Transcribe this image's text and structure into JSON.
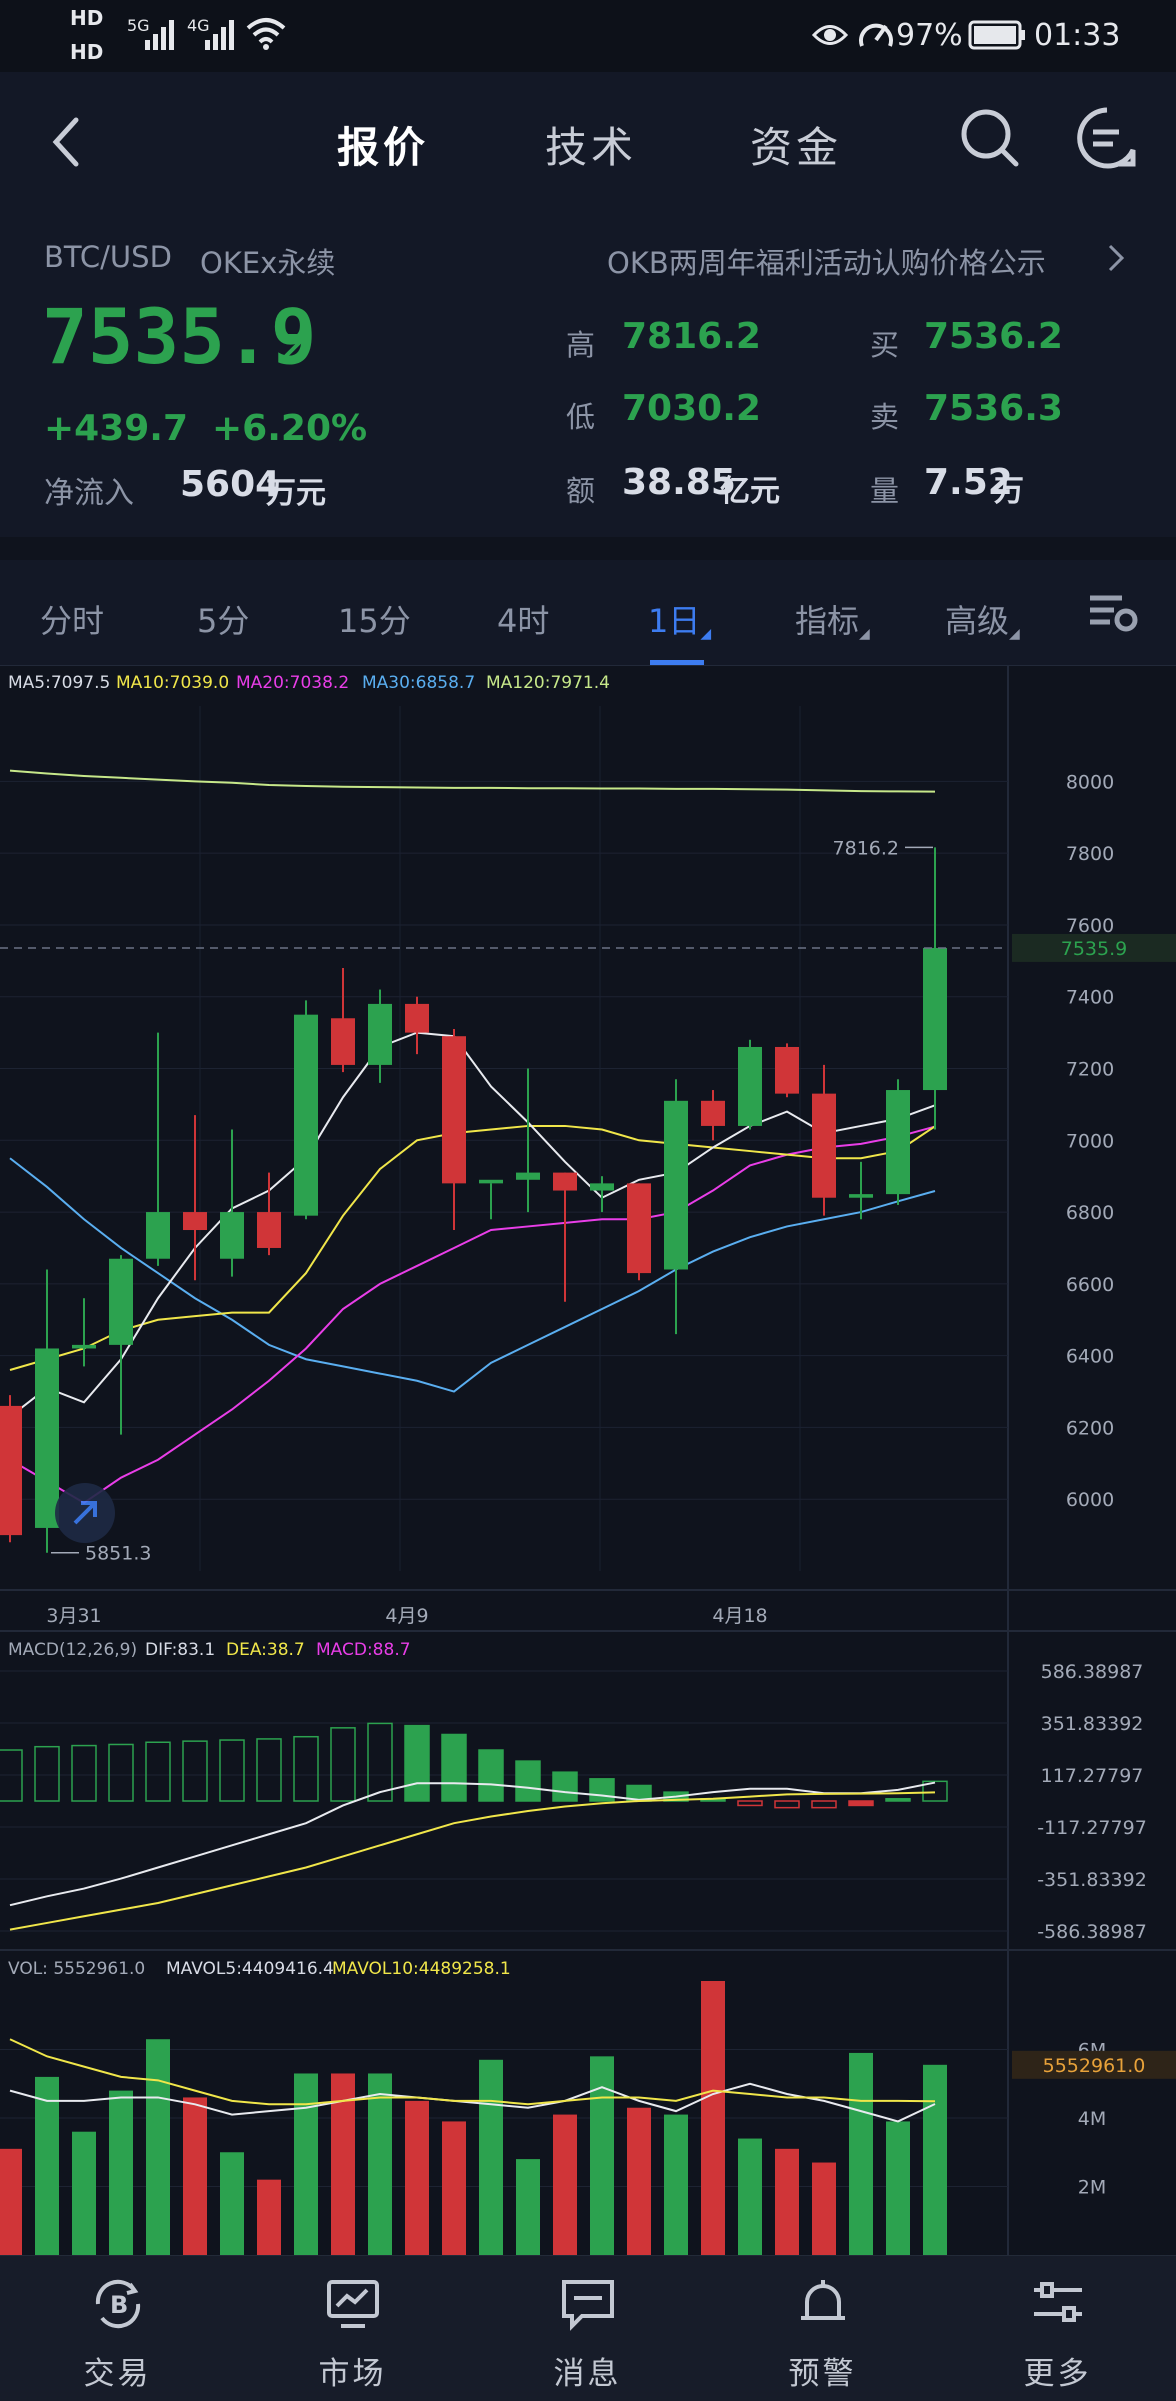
{
  "status": {
    "hd1": "HD",
    "hd2": "HD",
    "sig1": "5G",
    "sig2": "4G",
    "battery": "97%",
    "time": "01:33"
  },
  "nav": {
    "tabs": [
      "报价",
      "技术",
      "资金"
    ],
    "active": 0
  },
  "quote": {
    "pair": "BTC/USD",
    "market": "OKEx永续",
    "notice": "OKB两周年福利活动认购价格公示",
    "price": "7535.9",
    "change": "+439.7",
    "change_pct": "+6.20%",
    "netflow_label": "净流入",
    "netflow_value": "5604",
    "netflow_unit": "万元",
    "high_label": "高",
    "high": "7816.2",
    "low_label": "低",
    "low": "7030.2",
    "amount_label": "额",
    "amount": "38.85",
    "amount_unit": "亿元",
    "buy_label": "买",
    "buy": "7536.2",
    "sell_label": "卖",
    "sell": "7536.3",
    "volume_label": "量",
    "volume": "7.52",
    "volume_unit": "万"
  },
  "periods": {
    "items": [
      "分时",
      "5分",
      "15分",
      "4时",
      "1日",
      "指标",
      "高级"
    ],
    "active": 4
  },
  "colors": {
    "up": "#2ca24f",
    "down": "#d03538",
    "bg": "#0f131d",
    "accent": "#3d7cf0"
  },
  "chart_data": [
    {
      "type": "candlestick",
      "legend": {
        "ma5": "MA5:7097.5",
        "ma10": "MA10:7039.0",
        "ma20": "MA20:7038.2",
        "ma30": "MA30:6858.7",
        "ma120": "MA120:7971.4"
      },
      "y_ticks": [
        "8000",
        "7800",
        "7600",
        "7400",
        "7200",
        "7000",
        "6800",
        "6600",
        "6400",
        "6200",
        "6000"
      ],
      "ylim": [
        5800,
        8210
      ],
      "x_ticks": [
        {
          "label": "3月31",
          "index": 2
        },
        {
          "label": "4月9",
          "index": 11
        },
        {
          "label": "4月18",
          "index": 20
        }
      ],
      "high_marker": "7816.2",
      "low_marker": "5851.3",
      "last_marker": "7535.9",
      "candles": [
        {
          "o": 6260,
          "h": 6290,
          "c": 5900,
          "l": 5880
        },
        {
          "o": 5920,
          "h": 6640,
          "c": 6420,
          "l": 5851
        },
        {
          "o": 6420,
          "h": 6560,
          "c": 6430,
          "l": 6370
        },
        {
          "o": 6430,
          "h": 6680,
          "c": 6670,
          "l": 6180
        },
        {
          "o": 6670,
          "h": 7300,
          "c": 6800,
          "l": 6650
        },
        {
          "o": 6800,
          "h": 7070,
          "c": 6750,
          "l": 6610
        },
        {
          "o": 6670,
          "h": 7030,
          "c": 6800,
          "l": 6620
        },
        {
          "o": 6800,
          "h": 6910,
          "c": 6700,
          "l": 6680
        },
        {
          "o": 6790,
          "h": 7390,
          "c": 7350,
          "l": 6780
        },
        {
          "o": 7340,
          "h": 7480,
          "c": 7210,
          "l": 7190
        },
        {
          "o": 7210,
          "h": 7420,
          "c": 7380,
          "l": 7160
        },
        {
          "o": 7380,
          "h": 7400,
          "c": 7300,
          "l": 7240
        },
        {
          "o": 7290,
          "h": 7310,
          "c": 6880,
          "l": 6750
        },
        {
          "o": 6880,
          "h": 6880,
          "c": 6890,
          "l": 6780
        },
        {
          "o": 6890,
          "h": 7200,
          "c": 6910,
          "l": 6800
        },
        {
          "o": 6910,
          "h": 6910,
          "c": 6860,
          "l": 6550
        },
        {
          "o": 6860,
          "h": 6900,
          "c": 6880,
          "l": 6800
        },
        {
          "o": 6880,
          "h": 6880,
          "c": 6630,
          "l": 6610
        },
        {
          "o": 6640,
          "h": 7170,
          "c": 7110,
          "l": 6460
        },
        {
          "o": 7110,
          "h": 7140,
          "c": 7040,
          "l": 7000
        },
        {
          "o": 7040,
          "h": 7280,
          "c": 7260,
          "l": 7030
        },
        {
          "o": 7260,
          "h": 7270,
          "c": 7130,
          "l": 7120
        },
        {
          "o": 7130,
          "h": 7210,
          "c": 6840,
          "l": 6790
        },
        {
          "o": 6840,
          "h": 6940,
          "c": 6850,
          "l": 6780
        },
        {
          "o": 6850,
          "h": 7170,
          "c": 7140,
          "l": 6820
        },
        {
          "o": 7140,
          "h": 7816.2,
          "c": 7535.9,
          "l": 7030.2
        }
      ],
      "ma5": [
        6230,
        6310,
        6270,
        6390,
        6560,
        6700,
        6810,
        6860,
        6950,
        7120,
        7260,
        7300,
        7290,
        7150,
        7050,
        6940,
        6840,
        6890,
        6910,
        6980,
        7040,
        7080,
        7020,
        7040,
        7060,
        7097.5
      ],
      "ma10": [
        6360,
        6390,
        6420,
        6470,
        6500,
        6510,
        6520,
        6520,
        6630,
        6790,
        6920,
        7000,
        7020,
        7030,
        7040,
        7040,
        7030,
        7000,
        6990,
        6980,
        6970,
        6960,
        6950,
        6950,
        6970,
        7039.0
      ],
      "ma20": [
        6110,
        6050,
        5990,
        6060,
        6110,
        6180,
        6250,
        6330,
        6420,
        6530,
        6600,
        6650,
        6700,
        6750,
        6760,
        6770,
        6780,
        6780,
        6800,
        6860,
        6930,
        6960,
        6980,
        6990,
        7010,
        7038.2
      ],
      "ma30": [
        6950,
        6870,
        6780,
        6700,
        6630,
        6560,
        6500,
        6430,
        6390,
        6370,
        6350,
        6330,
        6300,
        6380,
        6430,
        6480,
        6530,
        6580,
        6640,
        6690,
        6730,
        6760,
        6780,
        6800,
        6830,
        6858.7
      ],
      "ma120": [
        8030,
        8022,
        8015,
        8010,
        8005,
        8000,
        7996,
        7990,
        7987,
        7985,
        7984,
        7983,
        7982,
        7982,
        7981,
        7981,
        7980,
        7980,
        7979,
        7979,
        7978,
        7977,
        7975,
        7973,
        7972,
        7971.4
      ]
    },
    {
      "type": "bar",
      "name": "MACD",
      "legend": {
        "title": "MACD(12,26,9)",
        "dif": "DIF:83.1",
        "dea": "DEA:38.7",
        "macd": "MACD:88.7"
      },
      "y_ticks": [
        "586.38987",
        "351.83392",
        "117.27797",
        "-117.27797",
        "-351.83392",
        "-586.38987"
      ],
      "ylim": [
        -586.38987,
        586.38987
      ],
      "macd": [
        230,
        245,
        250,
        255,
        265,
        270,
        275,
        280,
        290,
        330,
        350,
        340,
        300,
        230,
        180,
        130,
        100,
        70,
        40,
        10,
        -20,
        -30,
        -30,
        -20,
        10,
        88.7
      ],
      "dif": [
        -470,
        -430,
        -395,
        -350,
        -300,
        -250,
        -200,
        -150,
        -100,
        -20,
        40,
        80,
        80,
        75,
        60,
        40,
        25,
        5,
        20,
        40,
        55,
        55,
        35,
        35,
        50,
        83.1
      ],
      "dea": [
        -580,
        -550,
        -520,
        -490,
        -460,
        -420,
        -380,
        -340,
        -300,
        -250,
        -200,
        -150,
        -100,
        -70,
        -45,
        -25,
        -10,
        0,
        5,
        10,
        20,
        30,
        32,
        33,
        35,
        38.7
      ]
    },
    {
      "type": "bar",
      "name": "VOL",
      "legend": {
        "vol": "VOL: 5552961.0",
        "mavol5": "MAVOL5:4409416.4",
        "mavol10": "MAVOL10:4489258.1"
      },
      "y_ticks": [
        "6M",
        "4M",
        "2M"
      ],
      "ylim": [
        0,
        8000000
      ],
      "last_marker": "5552961.0",
      "volume": [
        3100000,
        5200000,
        3600000,
        4800000,
        6300000,
        4600000,
        3000000,
        2200000,
        5300000,
        5300000,
        5300000,
        4500000,
        3900000,
        5700000,
        2800000,
        4100000,
        5800000,
        4300000,
        4100000,
        8000000,
        3400000,
        3100000,
        2700000,
        5900000,
        3900000,
        5552961
      ],
      "mavol5": [
        4800000,
        4500000,
        4500000,
        4600000,
        4600000,
        4400000,
        4100000,
        4200000,
        4300000,
        4500000,
        4700000,
        4600000,
        4500000,
        4400000,
        4300000,
        4500000,
        4900000,
        4500000,
        4200000,
        4700000,
        5000000,
        4700000,
        4500000,
        4200000,
        3900000,
        4409416.4
      ],
      "mavol10": [
        6300000,
        5800000,
        5500000,
        5200000,
        5100000,
        4800000,
        4500000,
        4400000,
        4400000,
        4500000,
        4600000,
        4600000,
        4500000,
        4500000,
        4400000,
        4500000,
        4600000,
        4600000,
        4500000,
        4800000,
        4700000,
        4600000,
        4600000,
        4500000,
        4500000,
        4489258.1
      ]
    }
  ],
  "bottom": {
    "items": [
      "交易",
      "市场",
      "消息",
      "预警",
      "更多"
    ]
  }
}
